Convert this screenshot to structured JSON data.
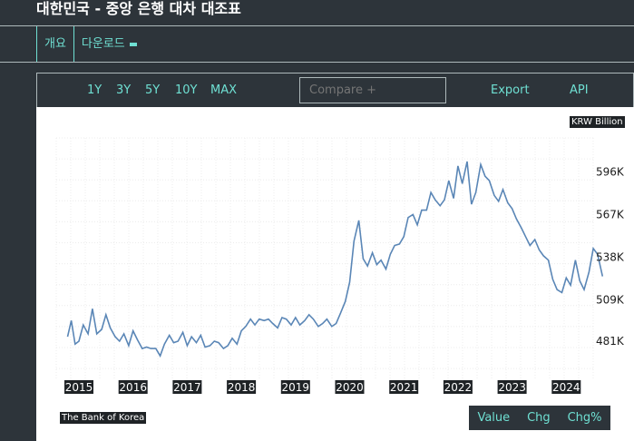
{
  "header": {
    "title": "대한민국 - 중앙 은행 대차 대조표"
  },
  "tabs": [
    {
      "label": "개요"
    },
    {
      "label": "다운로드"
    }
  ],
  "toolbar": {
    "ranges": [
      "1Y",
      "3Y",
      "5Y",
      "10Y",
      "MAX"
    ],
    "compare_placeholder": "Compare +",
    "export_label": "Export",
    "api_label": "API"
  },
  "unit_label": "KRW Billion",
  "source_label": "The Bank of Korea",
  "modes": [
    "Value",
    "Chg",
    "Chg%"
  ],
  "colors": {
    "line": "#5a86b6",
    "accent": "#6fe0d3",
    "background": "#2d343a"
  },
  "chart_data": {
    "type": "line",
    "title": "",
    "xlabel": "",
    "ylabel": "KRW Billion",
    "x_ticks": [
      "2015",
      "2016",
      "2017",
      "2018",
      "2019",
      "2020",
      "2021",
      "2022",
      "2023",
      "2024"
    ],
    "y_ticks": [
      "481K",
      "509K",
      "538K",
      "567K",
      "596K"
    ],
    "y_tick_values": [
      481000,
      509000,
      538000,
      567000,
      596000
    ],
    "xlim": [
      2014.8,
      2024.9
    ],
    "ylim": [
      472000,
      606000
    ],
    "grid": true,
    "series": [
      {
        "x": [
          2014.79,
          2014.86,
          2014.93,
          2015.0,
          2015.08,
          2015.17,
          2015.25,
          2015.33,
          2015.42,
          2015.5,
          2015.58,
          2015.67,
          2015.75,
          2015.83,
          2015.92,
          2016.0,
          2016.08,
          2016.17,
          2016.25,
          2016.33,
          2016.42,
          2016.5,
          2016.58,
          2016.67,
          2016.75,
          2016.83,
          2016.92,
          2017.0,
          2017.08,
          2017.17,
          2017.25,
          2017.33,
          2017.42,
          2017.5,
          2017.58,
          2017.67,
          2017.75,
          2017.83,
          2017.92,
          2018.0,
          2018.08,
          2018.17,
          2018.25,
          2018.33,
          2018.42,
          2018.5,
          2018.58,
          2018.67,
          2018.75,
          2018.83,
          2018.92,
          2019.0,
          2019.08,
          2019.17,
          2019.25,
          2019.33,
          2019.42,
          2019.5,
          2019.58,
          2019.67,
          2019.75,
          2019.83,
          2019.92,
          2020.0,
          2020.08,
          2020.17,
          2020.25,
          2020.33,
          2020.42,
          2020.5,
          2020.58,
          2020.67,
          2020.75,
          2020.83,
          2020.92,
          2021.0,
          2021.08,
          2021.17,
          2021.25,
          2021.33,
          2021.42,
          2021.5,
          2021.58,
          2021.67,
          2021.75,
          2021.83,
          2021.92,
          2022.0,
          2022.08,
          2022.17,
          2022.25,
          2022.33,
          2022.42,
          2022.5,
          2022.58,
          2022.67,
          2022.75,
          2022.83,
          2022.92,
          2023.0,
          2023.08,
          2023.17,
          2023.25,
          2023.33,
          2023.42,
          2023.5,
          2023.58,
          2023.67,
          2023.75,
          2023.83,
          2023.92,
          2024.0,
          2024.08,
          2024.17,
          2024.25,
          2024.33,
          2024.42,
          2024.5,
          2024.58,
          2024.67
        ],
        "values": [
          484000,
          495000,
          479000,
          481000,
          492000,
          486000,
          503000,
          486000,
          489000,
          499000,
          490000,
          484000,
          481000,
          486000,
          478000,
          488000,
          482000,
          476000,
          477000,
          476000,
          476000,
          471000,
          479000,
          485000,
          480000,
          481000,
          487000,
          478000,
          484000,
          480000,
          485000,
          477000,
          478000,
          481000,
          480000,
          476000,
          478000,
          483000,
          479000,
          488000,
          491000,
          496000,
          492000,
          496000,
          495000,
          496000,
          493000,
          490000,
          497000,
          496000,
          492000,
          497000,
          492000,
          495000,
          499000,
          496000,
          491000,
          493000,
          496000,
          491000,
          493000,
          500000,
          508000,
          521000,
          549000,
          563000,
          537000,
          532000,
          541000,
          533000,
          536000,
          530000,
          540000,
          546000,
          547000,
          552000,
          565000,
          567000,
          560000,
          570000,
          570000,
          582000,
          577000,
          573000,
          577000,
          590000,
          578000,
          600000,
          588000,
          603000,
          574000,
          582000,
          601000,
          593000,
          590000,
          580000,
          576000,
          584000,
          575000,
          571000,
          564000,
          558000,
          552000,
          546000,
          550000,
          543000,
          539000,
          536000,
          523000,
          516000,
          514000,
          524000,
          519000,
          536000,
          522000,
          516000,
          528000,
          544000,
          540000,
          525000
        ]
      }
    ]
  }
}
